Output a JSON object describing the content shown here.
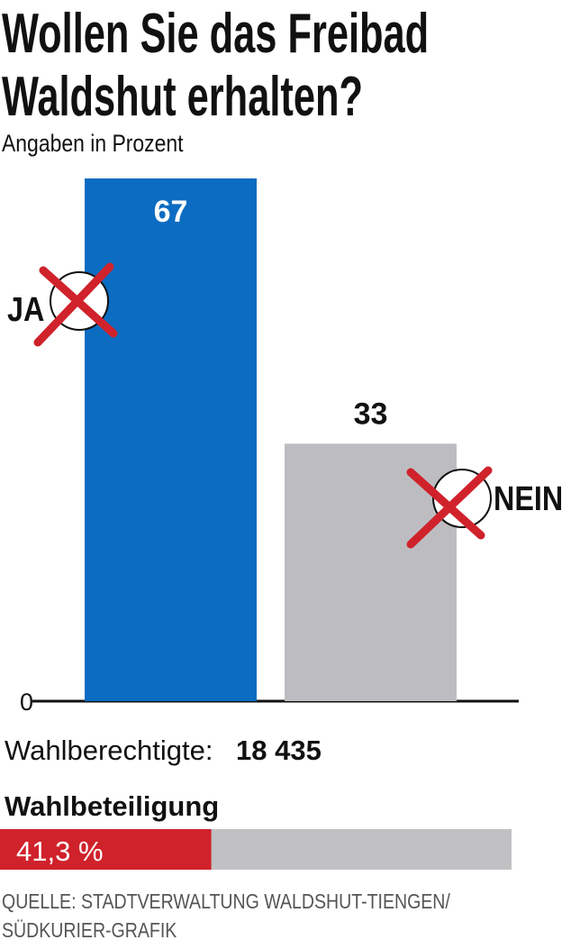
{
  "chart_data": {
    "type": "bar",
    "title": [
      "Wollen Sie das Freibad",
      "Waldshut erhalten?"
    ],
    "subtitle": "Angaben in Prozent",
    "categories": [
      "JA",
      "NEIN"
    ],
    "values": [
      67,
      33
    ],
    "colors": [
      "#0b6cc1",
      "#bdbdc1"
    ],
    "ylim": [
      0,
      67
    ],
    "yticks": [
      0
    ]
  },
  "eligible_voters": {
    "label": "Wahlberechtigte:",
    "value": "18 435"
  },
  "turnout": {
    "label": "Wahlbeteiligung",
    "value": 41.3,
    "value_label": "41,3 %",
    "xlim": [
      0,
      100
    ],
    "color": "#d0222b",
    "track_color": "#c1c1c4"
  },
  "source": [
    "QUELLE: STADTVERWALTUNG WALDSHUT-TIENGEN/",
    "SÜDKURIER-GRAFIK"
  ]
}
